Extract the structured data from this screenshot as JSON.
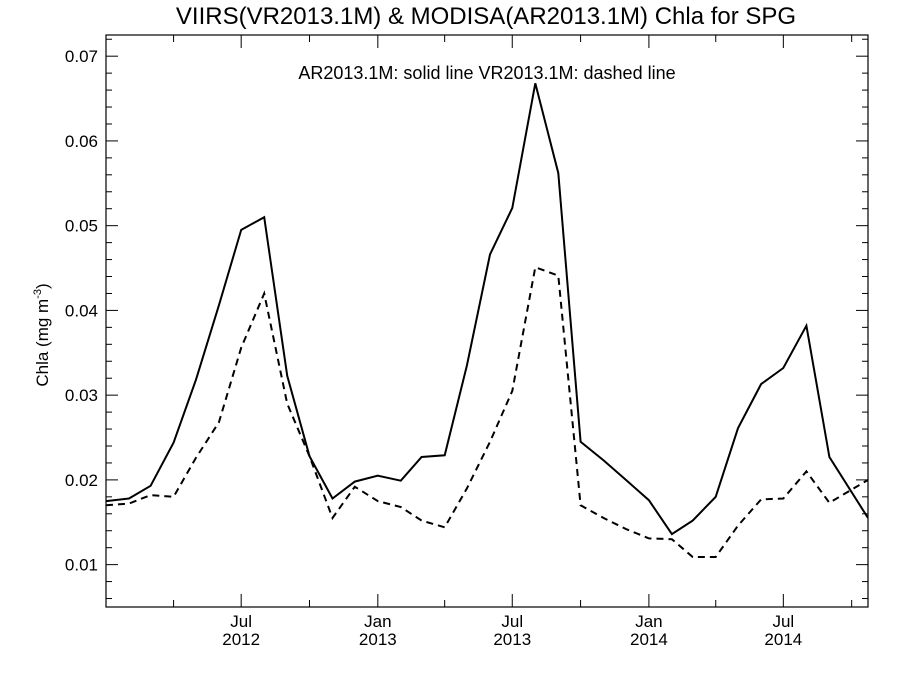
{
  "chart_data": {
    "type": "line",
    "title": "VIIRS(VR2013.1M) & MODISA(AR2013.1M)  Chla for SPG",
    "annotation": "AR2013.1M: solid line   VR2013.1M: dashed line",
    "ylabel": "Chla (mg m",
    "ylabel_unit_sup": "-3",
    "ylabel_close": ")",
    "ylim": [
      0.005,
      0.0725
    ],
    "y_ticks": [
      "0.01",
      "0.02",
      "0.03",
      "0.04",
      "0.05",
      "0.06",
      "0.07"
    ],
    "x_ticks": [
      {
        "x": "2012-07",
        "line1": "Jul",
        "line2": "2012"
      },
      {
        "x": "2013-01",
        "line1": "Jan",
        "line2": "2013"
      },
      {
        "x": "2013-07",
        "line1": "Jul",
        "line2": "2013"
      },
      {
        "x": "2014-01",
        "line1": "Jan",
        "line2": "2014"
      },
      {
        "x": "2014-07",
        "line1": "Jul",
        "line2": "2014"
      }
    ],
    "xlim": [
      "2012-01-01",
      "2014-10-23"
    ],
    "x": [
      "2012-01-01",
      "2012-02-01",
      "2012-03-01",
      "2012-04-01",
      "2012-05-01",
      "2012-06-01",
      "2012-07-01",
      "2012-08-01",
      "2012-09-01",
      "2012-10-01",
      "2012-11-01",
      "2012-12-01",
      "2013-01-01",
      "2013-02-01",
      "2013-03-01",
      "2013-04-01",
      "2013-05-01",
      "2013-06-01",
      "2013-07-01",
      "2013-08-01",
      "2013-09-01",
      "2013-10-01",
      "2013-11-01",
      "2013-12-01",
      "2014-01-01",
      "2014-02-01",
      "2014-03-01",
      "2014-04-01",
      "2014-05-01",
      "2014-06-01",
      "2014-07-01",
      "2014-08-01",
      "2014-09-01",
      "2014-10-23"
    ],
    "series": [
      {
        "line_style": "solid",
        "values": [
          0.0175,
          0.0178,
          0.0193,
          0.0244,
          0.0318,
          0.0406,
          0.0495,
          0.051,
          0.0323,
          0.0228,
          0.0178,
          0.0198,
          0.0205,
          0.0199,
          0.0227,
          0.0229,
          0.0335,
          0.0466,
          0.0521,
          0.0668,
          0.0562,
          0.0245,
          0.0223,
          0.02,
          0.0176,
          0.0136,
          0.0152,
          0.018,
          0.0261,
          0.0313,
          0.0332,
          0.0382,
          0.0227,
          0.0155
        ]
      },
      {
        "line_style": "dashed",
        "values": [
          0.017,
          0.0172,
          0.0182,
          0.018,
          0.0226,
          0.0268,
          0.0356,
          0.042,
          0.029,
          0.0228,
          0.0155,
          0.0192,
          0.0175,
          0.0168,
          0.0152,
          0.0144,
          0.019,
          0.0245,
          0.0305,
          0.0451,
          0.0441,
          0.017,
          0.0155,
          0.0142,
          0.0131,
          0.013,
          0.0109,
          0.0109,
          0.0146,
          0.0177,
          0.0178,
          0.021,
          0.0173,
          0.02
        ]
      }
    ],
    "colors": {
      "axis": "#000000",
      "line": "#000000",
      "background": "#ffffff"
    }
  }
}
